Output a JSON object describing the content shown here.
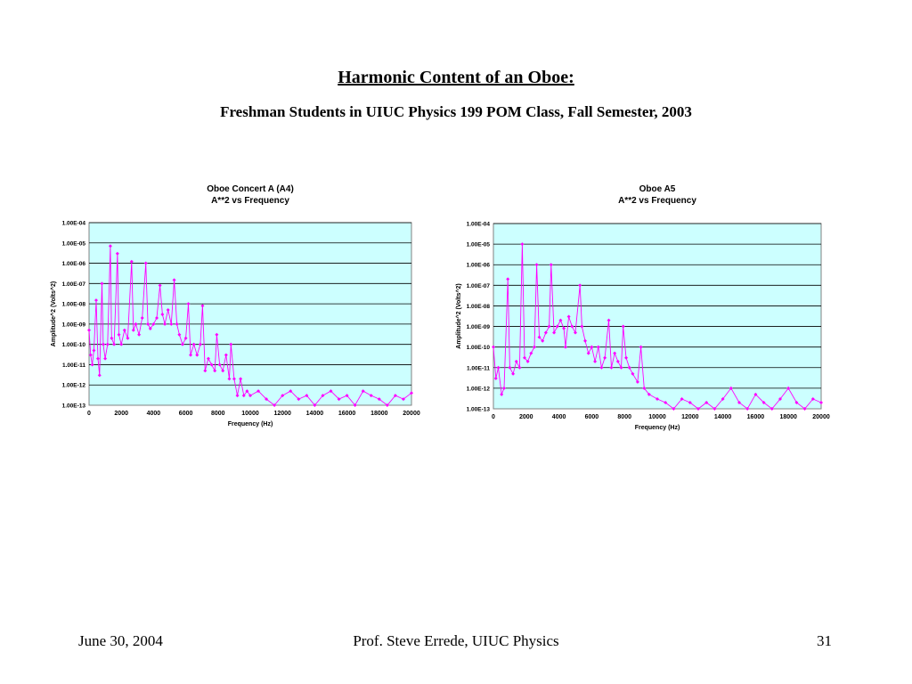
{
  "slide": {
    "title": "Harmonic Content of an Oboe:",
    "subtitle": "Freshman Students in UIUC Physics 199 POM Class, Fall Semester, 2003"
  },
  "footer": {
    "date": "June 30, 2004",
    "author": "Prof. Steve Errede, UIUC Physics",
    "page": "31"
  },
  "colors": {
    "series": "#ff00ff",
    "plot_bg": "#ccffff",
    "grid": "#000000"
  },
  "chart_data": [
    {
      "type": "scatter",
      "title": "Oboe Concert A (A4)",
      "subtitle": "A**2 vs Frequency",
      "xlabel": "Frequency (Hz)",
      "ylabel": "Amplitude^2 (Volts^2)",
      "xlim": [
        0,
        20000
      ],
      "ylim": [
        1e-13,
        0.0001
      ],
      "yscale": "log",
      "x_ticks": [
        "0",
        "2000",
        "4000",
        "6000",
        "8000",
        "10000",
        "12000",
        "14000",
        "16000",
        "18000",
        "20000"
      ],
      "y_ticks": [
        "1.00E-13",
        "1.00E-12",
        "1.00E-11",
        "1.00E-10",
        "1.00E-09",
        "1.00E-08",
        "1.00E-07",
        "1.00E-06",
        "1.00E-05",
        "1.00E-04"
      ],
      "grid": true,
      "legend": "none",
      "series": [
        {
          "values": {
            "x": [
              0,
              100,
              200,
              300,
              440,
              550,
              650,
              800,
              880,
              1000,
              1150,
              1320,
              1400,
              1550,
              1760,
              1850,
              2000,
              2200,
              2400,
              2640,
              2750,
              2900,
              3100,
              3300,
              3520,
              3650,
              3800,
              4000,
              4200,
              4400,
              4550,
              4700,
              4900,
              5100,
              5280,
              5450,
              5600,
              5800,
              6000,
              6160,
              6300,
              6500,
              6700,
              6900,
              7040,
              7200,
              7400,
              7600,
              7800,
              7920,
              8100,
              8300,
              8500,
              8700,
              8800,
              9000,
              9200,
              9400,
              9600,
              9800,
              10000,
              10500,
              11000,
              11500,
              12000,
              12500,
              13000,
              13500,
              14000,
              14500,
              15000,
              15500,
              16000,
              16500,
              17000,
              17500,
              18000,
              18500,
              19000,
              19500,
              20000
            ],
            "y": [
              5e-10,
              3e-11,
              1e-11,
              5e-11,
              1.5e-08,
              2e-11,
              3e-12,
              1e-07,
              1e-10,
              2e-11,
              1e-10,
              7e-06,
              2e-10,
              1e-10,
              3e-06,
              3e-10,
              1e-10,
              5e-10,
              2e-10,
              1.2e-06,
              5e-10,
              1e-09,
              3e-10,
              2e-09,
              1e-06,
              1e-09,
              6e-10,
              1e-09,
              2e-09,
              8e-08,
              3e-09,
              1e-09,
              5e-09,
              1e-09,
              1.5e-07,
              1e-09,
              3e-10,
              1e-10,
              2e-10,
              1e-08,
              3e-11,
              1e-10,
              3e-11,
              1e-10,
              8e-09,
              5e-12,
              2e-11,
              1e-11,
              5e-12,
              3e-10,
              1e-11,
              5e-12,
              3e-11,
              2e-12,
              1e-10,
              2e-12,
              3e-13,
              2e-12,
              3e-13,
              5e-13,
              3e-13,
              5e-13,
              2e-13,
              1e-13,
              3e-13,
              5e-13,
              2e-13,
              3e-13,
              1e-13,
              3e-13,
              5e-13,
              2e-13,
              3e-13,
              1e-13,
              5e-13,
              3e-13,
              2e-13,
              1e-13,
              3e-13,
              2e-13,
              4e-13
            ]
          }
        }
      ]
    },
    {
      "type": "scatter",
      "title": "Oboe A5",
      "subtitle": "A**2 vs Frequency",
      "xlabel": "Frequency (Hz)",
      "ylabel": "Amplitude^2 (Volts^2)",
      "xlim": [
        0,
        20000
      ],
      "ylim": [
        1e-13,
        0.0001
      ],
      "yscale": "log",
      "x_ticks": [
        "0",
        "2000",
        "4000",
        "6000",
        "8000",
        "10000",
        "12000",
        "14000",
        "16000",
        "18000",
        "20000"
      ],
      "y_ticks": [
        "1.00E-13",
        "1.00E-12",
        "1.00E-11",
        "1.00E-10",
        "1.00E-09",
        "1.00E-08",
        "1.00E-07",
        "1.00E-06",
        "1.00E-05",
        "1.00E-04"
      ],
      "grid": true,
      "legend": "none",
      "series": [
        {
          "values": {
            "x": [
              0,
              150,
              300,
              500,
              650,
              880,
              1000,
              1200,
              1400,
              1600,
              1760,
              1900,
              2100,
              2300,
              2500,
              2640,
              2800,
              3000,
              3200,
              3400,
              3520,
              3700,
              3900,
              4100,
              4300,
              4400,
              4600,
              4800,
              5000,
              5280,
              5400,
              5600,
              5800,
              6000,
              6200,
              6400,
              6600,
              6800,
              7040,
              7200,
              7400,
              7600,
              7800,
              7920,
              8100,
              8300,
              8500,
              8800,
              9000,
              9200,
              9500,
              10000,
              10500,
              11000,
              11500,
              12000,
              12500,
              13000,
              13500,
              14000,
              14500,
              15000,
              15500,
              16000,
              16500,
              17000,
              17500,
              18000,
              18500,
              19000,
              19500,
              20000
            ],
            "y": [
              1e-10,
              3e-12,
              1e-11,
              5e-13,
              1e-12,
              2e-07,
              1e-11,
              5e-12,
              2e-11,
              1e-11,
              1e-05,
              3e-11,
              2e-11,
              5e-11,
              1e-10,
              1e-06,
              3e-10,
              2e-10,
              5e-10,
              1e-09,
              1e-06,
              5e-10,
              1e-09,
              2e-09,
              8e-10,
              1e-10,
              3e-09,
              1e-09,
              5e-10,
              1e-07,
              1e-09,
              2e-10,
              5e-11,
              1e-10,
              2e-11,
              1e-10,
              1e-11,
              3e-11,
              2e-09,
              1e-11,
              5e-11,
              2e-11,
              1e-11,
              1e-09,
              3e-11,
              1e-11,
              5e-12,
              2e-12,
              1e-10,
              1e-12,
              5e-13,
              3e-13,
              2e-13,
              1e-13,
              3e-13,
              2e-13,
              1e-13,
              2e-13,
              1e-13,
              3e-13,
              1e-12,
              2e-13,
              1e-13,
              5e-13,
              2e-13,
              1e-13,
              3e-13,
              1e-12,
              2e-13,
              1e-13,
              3e-13,
              2e-13
            ]
          }
        }
      ]
    }
  ]
}
